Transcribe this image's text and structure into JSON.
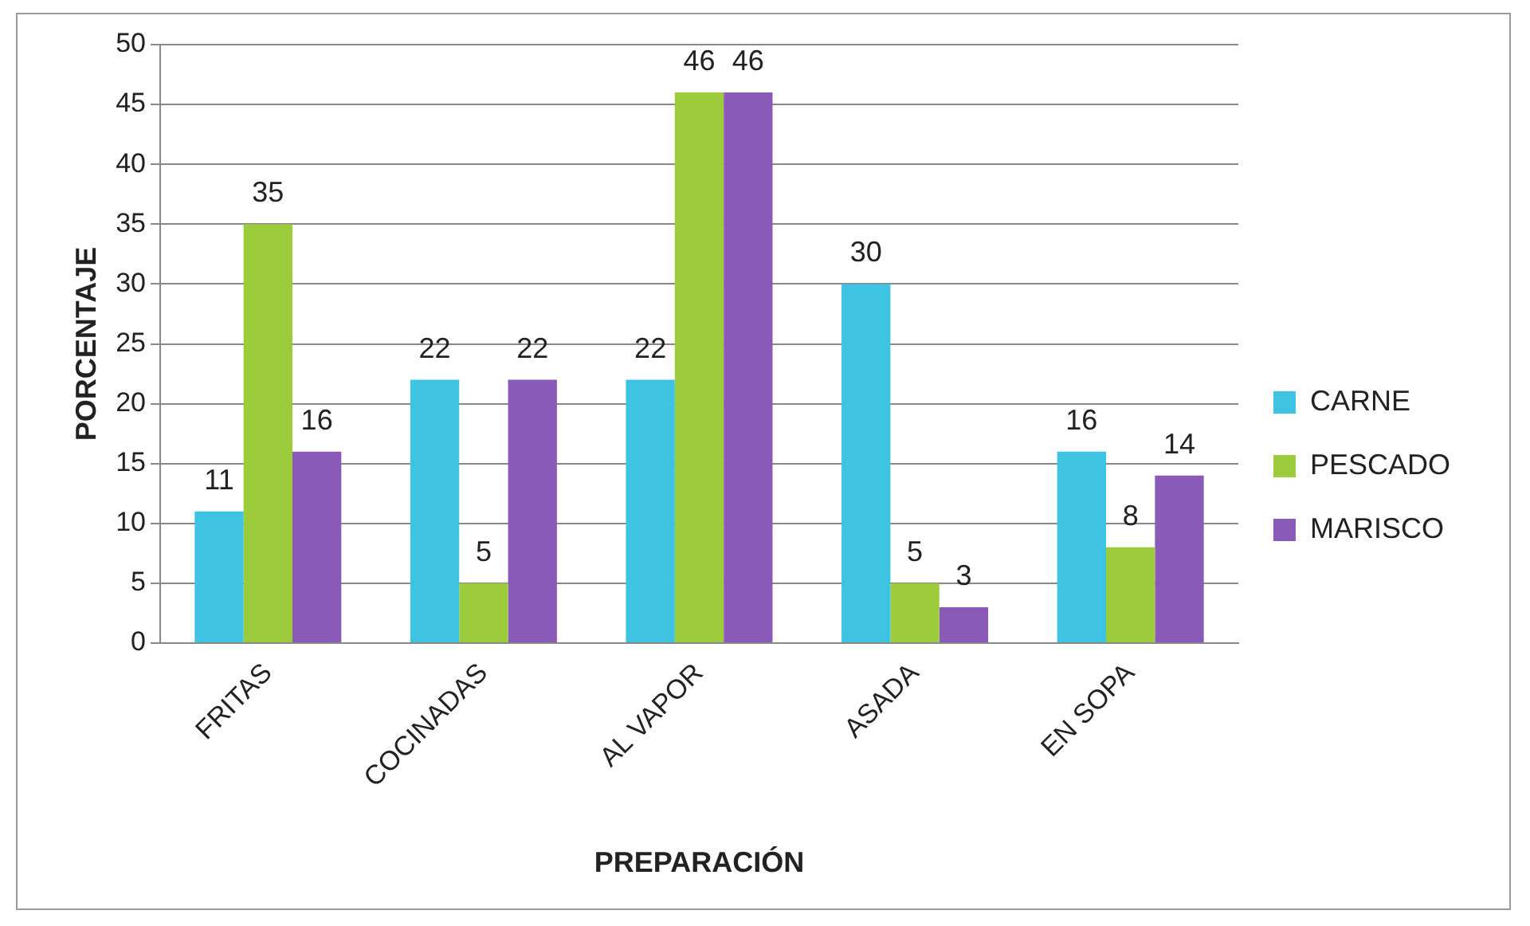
{
  "chart_data": {
    "type": "bar",
    "xlabel": "PREPARACIÓN",
    "ylabel": "PORCENTAJE",
    "categories": [
      "FRITAS",
      "COCINADAS",
      "AL VAPOR",
      "ASADA",
      "EN SOPA"
    ],
    "series": [
      {
        "name": "CARNE",
        "color": "#3ec3e3",
        "values": [
          11,
          22,
          22,
          30,
          16
        ]
      },
      {
        "name": "PESCADO",
        "color": "#9ccc3c",
        "values": [
          35,
          5,
          46,
          5,
          8
        ]
      },
      {
        "name": "MARISCO",
        "color": "#8a5ab8",
        "values": [
          16,
          22,
          46,
          3,
          14
        ]
      }
    ],
    "ylim": [
      0,
      50
    ],
    "yticks": [
      0,
      5,
      10,
      15,
      20,
      25,
      30,
      35,
      40,
      45,
      50
    ],
    "grid": "y",
    "legend": "right",
    "data_labels": true
  }
}
